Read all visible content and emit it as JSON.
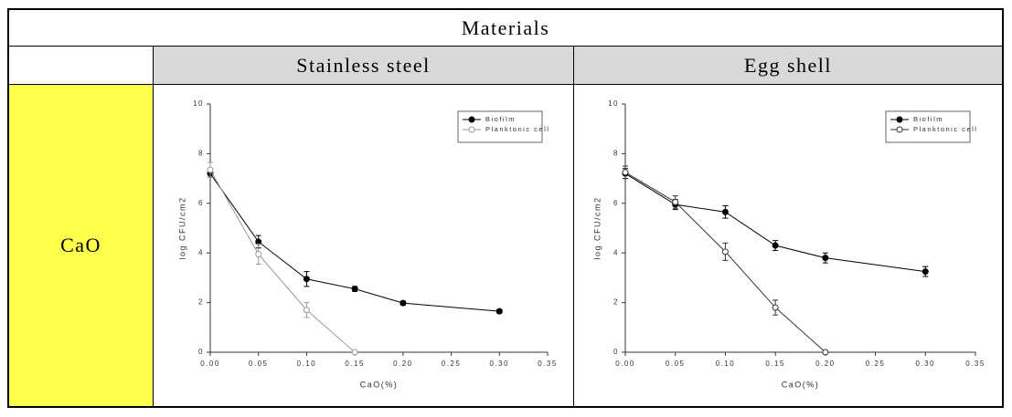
{
  "table": {
    "header": "Materials",
    "columns": [
      "Stainless steel",
      "Egg shell"
    ],
    "row_label": "CaO"
  },
  "chart_data": [
    {
      "type": "line",
      "xlabel": "CaO(%)",
      "ylabel": "log CFU/cm2",
      "xlim": [
        0,
        0.35
      ],
      "ylim": [
        0,
        10
      ],
      "xticks": [
        {
          "value": 0,
          "label": "0.00"
        },
        0.05,
        {
          "value": 0.1,
          "label": "0.10"
        },
        0.15,
        {
          "value": 0.2,
          "label": "0.20"
        },
        0.25,
        {
          "value": 0.3,
          "label": "0.30"
        },
        0.35
      ],
      "yticks": [
        0,
        2,
        4,
        6,
        8,
        10
      ],
      "legend": "upper right",
      "series": [
        {
          "name": "Biofilm",
          "color": "#000000",
          "marker": "filled",
          "x": [
            0,
            0.05,
            0.1,
            0.15,
            0.2,
            0.3
          ],
          "values": [
            7.2,
            4.45,
            2.95,
            2.55,
            1.98,
            1.65
          ],
          "errors": [
            0.15,
            0.25,
            0.3,
            0.1,
            0.08,
            0.08
          ]
        },
        {
          "name": "Planktonic cell",
          "color": "#999999",
          "marker": "open",
          "x": [
            0,
            0.05,
            0.1,
            0.15
          ],
          "values": [
            7.35,
            3.95,
            1.7,
            0
          ],
          "errors": [
            0.3,
            0.4,
            0.3,
            0
          ]
        }
      ]
    },
    {
      "type": "line",
      "xlabel": "CaO(%)",
      "ylabel": "log CFU/cm2",
      "xlim": [
        0,
        0.35
      ],
      "ylim": [
        0,
        10
      ],
      "xticks": [
        {
          "value": 0,
          "label": "0.00"
        },
        0.05,
        {
          "value": 0.1,
          "label": "0.10"
        },
        0.15,
        {
          "value": 0.2,
          "label": "0.20"
        },
        0.25,
        {
          "value": 0.3,
          "label": "0.30"
        },
        0.35
      ],
      "yticks": [
        0,
        2,
        4,
        6,
        8,
        10
      ],
      "legend": "upper right",
      "series": [
        {
          "name": "Biofilm",
          "color": "#000000",
          "marker": "filled",
          "x": [
            0,
            0.05,
            0.1,
            0.15,
            0.2,
            0.3
          ],
          "values": [
            7.2,
            5.95,
            5.65,
            4.3,
            3.8,
            3.25
          ],
          "errors": [
            0.2,
            0.2,
            0.25,
            0.2,
            0.2,
            0.2
          ]
        },
        {
          "name": "Planktonic cell",
          "color": "#333333",
          "marker": "open",
          "x": [
            0,
            0.05,
            0.1,
            0.15,
            0.2
          ],
          "values": [
            7.25,
            6.05,
            4.05,
            1.8,
            0
          ],
          "errors": [
            0.25,
            0.25,
            0.35,
            0.3,
            0
          ]
        }
      ]
    }
  ]
}
